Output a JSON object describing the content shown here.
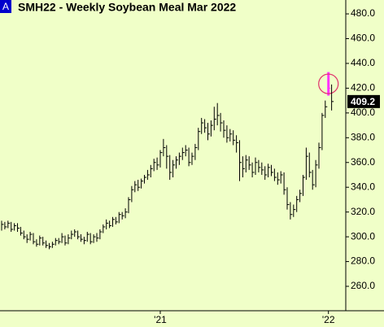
{
  "chart_data": {
    "type": "ohlc",
    "title": "SMH22 - Weekly  Soybean Meal Mar 2022",
    "badge": "A",
    "badge_color": "#0000cc",
    "background": "#f0ffc8",
    "categories": [
      null,
      null,
      null,
      null,
      null,
      null,
      null,
      null,
      null,
      null,
      null,
      null,
      null,
      null,
      null,
      null,
      null,
      null,
      null,
      null,
      null,
      null,
      null,
      null,
      null,
      null,
      null,
      null,
      null,
      null,
      null,
      null,
      null,
      null,
      null,
      null,
      null,
      null,
      null,
      null,
      null,
      null,
      null,
      null,
      null,
      null,
      null,
      null,
      null,
      null,
      "'21",
      null,
      null,
      null,
      null,
      null,
      null,
      null,
      null,
      null,
      null,
      null,
      null,
      null,
      null,
      null,
      null,
      null,
      null,
      null,
      null,
      null,
      null,
      null,
      null,
      null,
      null,
      null,
      null,
      null,
      null,
      null,
      null,
      null,
      null,
      null,
      null,
      null,
      null,
      null,
      null,
      null,
      null,
      null,
      null,
      null,
      null,
      null,
      null,
      null,
      null,
      null,
      null,
      "'22",
      null
    ],
    "series": [
      {
        "color": "#000000",
        "high": [
          313,
          312,
          313,
          312,
          311,
          311,
          308,
          305,
          302,
          304,
          303,
          298,
          301,
          300,
          297,
          295,
          296,
          299,
          299,
          303,
          301,
          302,
          305,
          306,
          305,
          302,
          300,
          304,
          303,
          302,
          303,
          306,
          310,
          314,
          313,
          316,
          316,
          320,
          320,
          323,
          332,
          341,
          345,
          346,
          347,
          350,
          354,
          358,
          363,
          364,
          370,
          379,
          374,
          366,
          362,
          365,
          368,
          372,
          374,
          372,
          368,
          375,
          388,
          396,
          395,
          392,
          394,
          405,
          408,
          400,
          394,
          390,
          387,
          386,
          382,
          378,
          365,
          366,
          365,
          360,
          364,
          362,
          360,
          357,
          359,
          358,
          355,
          352,
          353,
          352,
          340,
          328,
          326,
          333,
          338,
          350,
          372,
          368,
          354,
          362,
          376,
          400,
          410,
          433,
          423
        ],
        "low": [
          305,
          306,
          307,
          304,
          305,
          304,
          301,
          298,
          295,
          297,
          294,
          292,
          293,
          293,
          291,
          290,
          291,
          293,
          294,
          295,
          293,
          294,
          298,
          300,
          298,
          296,
          294,
          296,
          294,
          295,
          296,
          298,
          303,
          306,
          307,
          308,
          310,
          311,
          314,
          315,
          319,
          328,
          336,
          337,
          339,
          343,
          346,
          348,
          353,
          354,
          356,
          365,
          355,
          346,
          348,
          355,
          358,
          362,
          365,
          357,
          358,
          362,
          370,
          383,
          384,
          378,
          381,
          386,
          390,
          385,
          380,
          376,
          377,
          374,
          368,
          345,
          348,
          352,
          354,
          348,
          350,
          352,
          350,
          346,
          348,
          349,
          345,
          342,
          343,
          334,
          322,
          314,
          316,
          320,
          328,
          333,
          346,
          348,
          338,
          340,
          355,
          370,
          396,
          414,
          402
        ],
        "close": [
          310,
          308,
          311,
          306,
          309,
          307,
          303,
          300,
          298,
          302,
          296,
          294,
          299,
          295,
          293,
          292,
          294,
          297,
          296,
          300,
          295,
          299,
          302,
          304,
          300,
          298,
          297,
          302,
          296,
          300,
          299,
          304,
          308,
          311,
          309,
          314,
          312,
          318,
          317,
          320,
          330,
          338,
          342,
          340,
          345,
          348,
          350,
          355,
          360,
          358,
          368,
          372,
          365,
          352,
          358,
          362,
          365,
          368,
          370,
          360,
          365,
          372,
          385,
          392,
          388,
          383,
          390,
          395,
          398,
          392,
          386,
          380,
          383,
          378,
          376,
          360,
          355,
          362,
          358,
          352,
          360,
          356,
          354,
          350,
          356,
          352,
          348,
          346,
          350,
          338,
          326,
          318,
          322,
          330,
          335,
          348,
          365,
          352,
          342,
          358,
          372,
          398,
          405,
          420,
          409.2
        ]
      }
    ],
    "highlight_index": 103,
    "highlight_color": "#ff33ff",
    "ring_color": "#e0306a",
    "ylim": [
      240.3,
      491.2
    ],
    "yticks": [
      {
        "value": 260,
        "label": "260.0"
      },
      {
        "value": 280,
        "label": "280.0"
      },
      {
        "value": 300,
        "label": "300.0"
      },
      {
        "value": 320,
        "label": "320.0"
      },
      {
        "value": 340,
        "label": "340.0"
      },
      {
        "value": 360,
        "label": "360.0"
      },
      {
        "value": 380,
        "label": "380.0"
      },
      {
        "value": 400,
        "label": "400.0"
      },
      {
        "value": 420,
        "label": "420.0"
      },
      {
        "value": 440,
        "label": "440.0"
      },
      {
        "value": 460,
        "label": "460.0"
      },
      {
        "value": 480,
        "label": "480.0"
      }
    ],
    "grid": false
  }
}
